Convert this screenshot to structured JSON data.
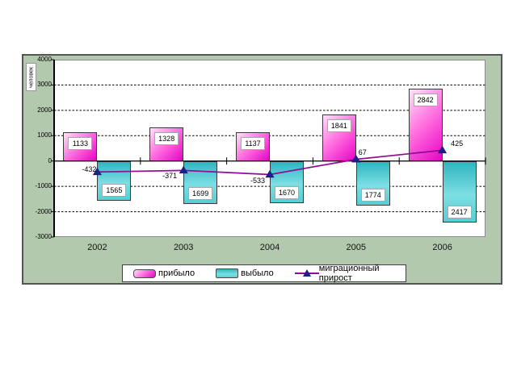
{
  "chart_data": {
    "type": "bar",
    "subtype": "bar-line-combo",
    "title": "",
    "xlabel": "",
    "ylabel": "человек",
    "categories": [
      "2002",
      "2003",
      "2004",
      "2005",
      "2006"
    ],
    "series": [
      {
        "name": "прибыло",
        "type": "bar",
        "color": "#e903c6",
        "values": [
          1133,
          1328,
          1137,
          1841,
          2842
        ],
        "direction": "up",
        "label_position": "inside-top"
      },
      {
        "name": "выбыло",
        "type": "bar",
        "color": "#45c8d0",
        "values": [
          1565,
          1699,
          1670,
          1774,
          2417
        ],
        "direction": "down",
        "label_position": "inside-bottom"
      },
      {
        "name": "миграционный прирост",
        "type": "line",
        "color": "#8d0d94",
        "marker": "triangle-up",
        "marker_color": "#1f1f8b",
        "values": [
          -432,
          -371,
          -533,
          67,
          425
        ]
      }
    ],
    "ylim": [
      -3000,
      4000
    ],
    "yticks": [
      4000,
      3000,
      2000,
      1000,
      0,
      -1000,
      -2000,
      -3000
    ],
    "grid": "horizontal-dashed",
    "legend_position": "bottom",
    "frame_color": "#b3c9ae",
    "plot_bg": "#ffffff"
  }
}
